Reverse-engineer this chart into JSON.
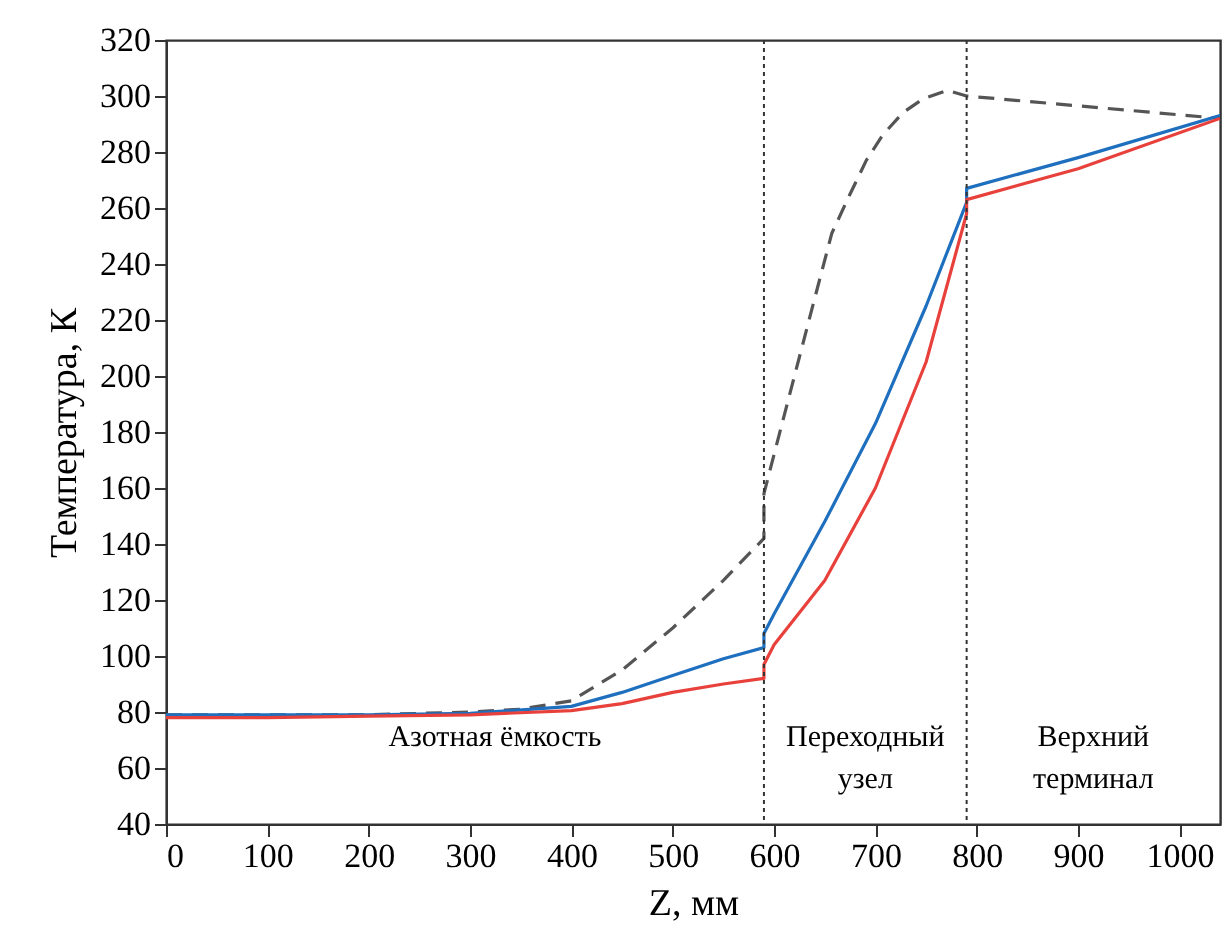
{
  "chart_data": {
    "type": "line",
    "xlabel": "Z, мм",
    "ylabel": "Температура, К",
    "xlim": [
      0,
      1040
    ],
    "ylim": [
      40,
      320
    ],
    "xticks": [
      0,
      100,
      200,
      300,
      400,
      500,
      600,
      700,
      800,
      900,
      1000
    ],
    "yticks": [
      40,
      60,
      80,
      100,
      120,
      140,
      160,
      180,
      200,
      220,
      240,
      260,
      280,
      300,
      320
    ],
    "grid": false,
    "marker": "none",
    "series": [
      {
        "color": "#555555",
        "line_style": "dashed",
        "x": [
          0,
          100,
          200,
          300,
          350,
          400,
          450,
          500,
          550,
          590,
          590,
          605,
          641,
          657,
          675,
          691,
          707,
          727,
          747,
          771,
          790,
          1040
        ],
        "values": [
          79,
          79,
          79,
          80,
          81,
          84,
          95,
          110,
          127,
          142,
          158,
          179,
          229,
          251,
          265,
          277,
          286,
          294,
          299,
          302,
          300,
          292
        ]
      },
      {
        "color": "#1f6fbf",
        "line_style": "solid",
        "x": [
          0,
          100,
          200,
          300,
          400,
          450,
          500,
          550,
          590,
          590,
          600,
          650,
          700,
          750,
          790,
          790,
          900,
          1040
        ],
        "values": [
          79,
          79,
          79,
          79.5,
          82,
          87,
          93,
          99,
          103,
          108,
          115,
          148,
          183,
          225,
          262,
          267,
          278,
          293
        ]
      },
      {
        "color": "#e8413c",
        "line_style": "solid",
        "x": [
          0,
          100,
          200,
          300,
          400,
          450,
          500,
          550,
          590,
          590,
          600,
          650,
          700,
          750,
          790,
          790,
          900,
          1040
        ],
        "values": [
          78,
          78,
          78.5,
          79,
          80.5,
          83,
          87,
          90,
          92,
          97,
          104,
          127,
          160,
          205,
          258,
          263,
          274,
          292
        ]
      }
    ],
    "ref_lines": [
      {
        "axis": "x",
        "value": 590,
        "color": "#333333",
        "line_style": "dotted"
      },
      {
        "axis": "x",
        "value": 790,
        "color": "#333333",
        "line_style": "dotted"
      }
    ],
    "annotations": [
      "Азотная ёмкость",
      "Переходный\nузел",
      "Верхний\nтерминал"
    ]
  }
}
